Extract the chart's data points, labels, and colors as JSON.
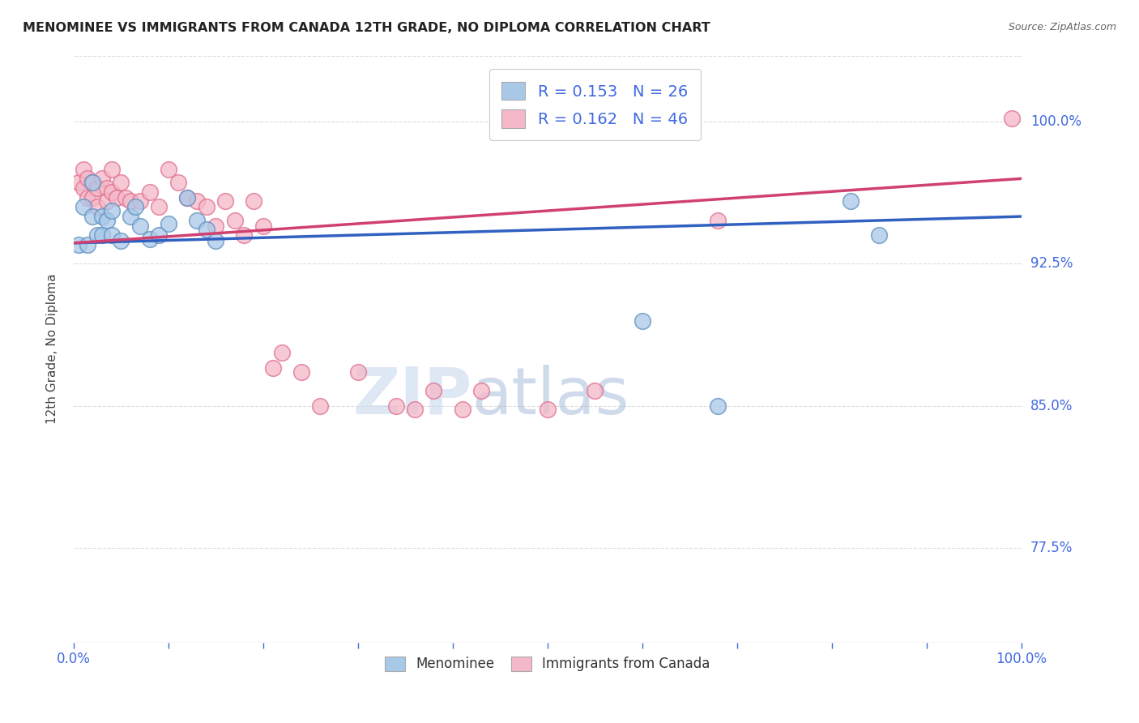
{
  "title": "MENOMINEE VS IMMIGRANTS FROM CANADA 12TH GRADE, NO DIPLOMA CORRELATION CHART",
  "source": "Source: ZipAtlas.com",
  "ylabel": "12th Grade, No Diploma",
  "yticks": [
    "100.0%",
    "92.5%",
    "85.0%",
    "77.5%"
  ],
  "ytick_values": [
    1.0,
    0.925,
    0.85,
    0.775
  ],
  "xlim": [
    0.0,
    1.0
  ],
  "ylim": [
    0.725,
    1.035
  ],
  "legend_blue_label": "R = 0.153   N = 26",
  "legend_pink_label": "R = 0.162   N = 46",
  "legend_bottom_blue": "Menominee",
  "legend_bottom_pink": "Immigrants from Canada",
  "watermark_zip": "ZIP",
  "watermark_atlas": "atlas",
  "blue_color": "#a8c8e8",
  "pink_color": "#f4b8c8",
  "blue_edge_color": "#6090c0",
  "pink_edge_color": "#e07090",
  "trend_blue_color": "#3060c0",
  "trend_pink_color": "#d04070",
  "blue_scatter_x": [
    0.005,
    0.01,
    0.015,
    0.02,
    0.02,
    0.025,
    0.03,
    0.03,
    0.035,
    0.04,
    0.04,
    0.05,
    0.06,
    0.065,
    0.07,
    0.08,
    0.09,
    0.1,
    0.12,
    0.13,
    0.14,
    0.15,
    0.6,
    0.68,
    0.82,
    0.85
  ],
  "blue_scatter_y": [
    0.935,
    0.955,
    0.935,
    0.968,
    0.95,
    0.94,
    0.95,
    0.94,
    0.948,
    0.953,
    0.94,
    0.937,
    0.95,
    0.955,
    0.945,
    0.938,
    0.94,
    0.946,
    0.96,
    0.948,
    0.943,
    0.937,
    0.895,
    0.85,
    0.958,
    0.94
  ],
  "pink_scatter_x": [
    0.005,
    0.01,
    0.01,
    0.015,
    0.015,
    0.02,
    0.02,
    0.025,
    0.025,
    0.03,
    0.035,
    0.035,
    0.04,
    0.04,
    0.045,
    0.05,
    0.055,
    0.06,
    0.07,
    0.08,
    0.09,
    0.1,
    0.11,
    0.12,
    0.13,
    0.14,
    0.15,
    0.16,
    0.17,
    0.18,
    0.19,
    0.2,
    0.21,
    0.22,
    0.24,
    0.26,
    0.3,
    0.34,
    0.36,
    0.38,
    0.41,
    0.43,
    0.5,
    0.55,
    0.68,
    0.99
  ],
  "pink_scatter_y": [
    0.968,
    0.975,
    0.965,
    0.97,
    0.96,
    0.968,
    0.96,
    0.965,
    0.955,
    0.97,
    0.965,
    0.958,
    0.975,
    0.963,
    0.96,
    0.968,
    0.96,
    0.958,
    0.958,
    0.963,
    0.955,
    0.975,
    0.968,
    0.96,
    0.958,
    0.955,
    0.945,
    0.958,
    0.948,
    0.94,
    0.958,
    0.945,
    0.87,
    0.878,
    0.868,
    0.85,
    0.868,
    0.85,
    0.848,
    0.858,
    0.848,
    0.858,
    0.848,
    0.858,
    0.948,
    1.002
  ],
  "blue_trend_x": [
    0.0,
    1.0
  ],
  "blue_trend_y": [
    0.936,
    0.95
  ],
  "pink_trend_x": [
    0.0,
    1.0
  ],
  "pink_trend_y": [
    0.936,
    0.97
  ],
  "title_color": "#222222",
  "axis_color": "#4169e1",
  "grid_color": "#dddddd",
  "background_color": "#ffffff"
}
